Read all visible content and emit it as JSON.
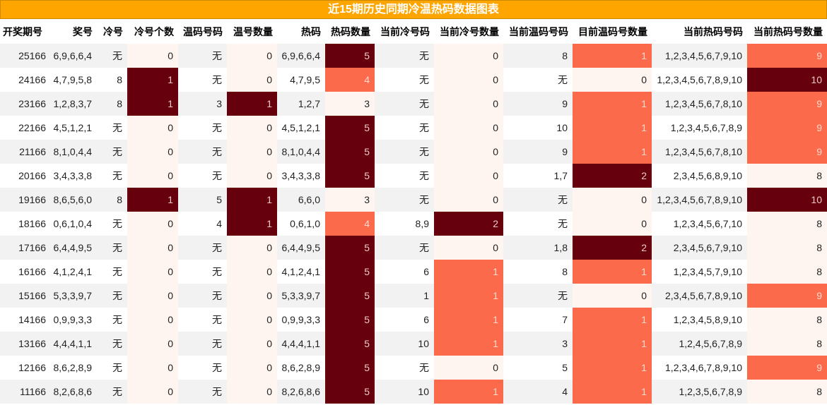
{
  "title": "近15期历史同期冷温热码数据图表",
  "table": {
    "headers": [
      "开奖期号",
      "奖号",
      "冷号",
      "冷号个数",
      "温码号码",
      "温号数量",
      "热码",
      "热码数量",
      "当前冷号码",
      "当前冷号数量",
      "当前温码号码",
      "目前温码号数量",
      "当前热码号码",
      "当前热码号数量"
    ],
    "rows": [
      [
        "25166",
        "6,9,6,6,4",
        "无",
        0,
        "无",
        0,
        "6,9,6,6,4",
        5,
        "无",
        0,
        "8",
        1,
        "1,2,3,4,5,6,7,9,10",
        9
      ],
      [
        "24166",
        "4,7,9,5,8",
        "8",
        1,
        "无",
        0,
        "4,7,9,5",
        4,
        "无",
        0,
        "无",
        0,
        "1,2,3,4,5,6,7,8,9,10",
        10
      ],
      [
        "23166",
        "1,2,8,3,7",
        "8",
        1,
        "3",
        1,
        "1,2,7",
        3,
        "无",
        0,
        "9",
        1,
        "1,2,3,4,5,6,7,8,10",
        9
      ],
      [
        "22166",
        "4,5,1,2,1",
        "无",
        0,
        "无",
        0,
        "4,5,1,2,1",
        5,
        "无",
        0,
        "10",
        1,
        "1,2,3,4,5,6,7,8,9",
        9
      ],
      [
        "21166",
        "8,1,0,4,4",
        "无",
        0,
        "无",
        0,
        "8,1,0,4,4",
        5,
        "无",
        0,
        "9",
        1,
        "1,2,3,4,5,6,7,8,10",
        9
      ],
      [
        "20166",
        "3,4,3,3,8",
        "无",
        0,
        "无",
        0,
        "3,4,3,3,8",
        5,
        "无",
        0,
        "1,7",
        2,
        "2,3,4,5,6,8,9,10",
        8
      ],
      [
        "19166",
        "8,6,5,6,0",
        "8",
        1,
        "5",
        1,
        "6,6,0",
        3,
        "无",
        0,
        "无",
        0,
        "1,2,3,4,5,6,7,8,9,10",
        10
      ],
      [
        "18166",
        "0,6,1,0,4",
        "无",
        0,
        "4",
        1,
        "0,6,1,0",
        4,
        "8,9",
        2,
        "无",
        0,
        "1,2,3,4,5,6,7,10",
        8
      ],
      [
        "17166",
        "6,4,4,9,5",
        "无",
        0,
        "无",
        0,
        "6,4,4,9,5",
        5,
        "无",
        0,
        "1,8",
        2,
        "2,3,4,5,6,7,9,10",
        8
      ],
      [
        "16166",
        "4,1,2,4,1",
        "无",
        0,
        "无",
        0,
        "4,1,2,4,1",
        5,
        "6",
        1,
        "8",
        1,
        "1,2,3,4,5,7,9,10",
        8
      ],
      [
        "15166",
        "5,3,3,9,7",
        "无",
        0,
        "无",
        0,
        "5,3,3,9,7",
        5,
        "1",
        1,
        "无",
        0,
        "2,3,4,5,6,7,8,9,10",
        9
      ],
      [
        "14166",
        "0,9,9,3,3",
        "无",
        0,
        "无",
        0,
        "0,9,9,3,3",
        5,
        "6",
        1,
        "7",
        1,
        "1,2,3,4,5,8,9,10",
        8
      ],
      [
        "13166",
        "4,4,4,1,1",
        "无",
        0,
        "无",
        0,
        "4,4,4,1,1",
        5,
        "10",
        1,
        "3",
        1,
        "1,2,4,5,6,7,8,9",
        8
      ],
      [
        "12166",
        "8,6,2,8,9",
        "无",
        0,
        "无",
        0,
        "8,6,2,8,9",
        5,
        "无",
        0,
        "5",
        1,
        "1,2,3,4,6,7,8,9,10",
        9
      ],
      [
        "11166",
        "8,2,6,8,6",
        "无",
        0,
        "无",
        0,
        "8,2,6,8,6",
        5,
        "10",
        1,
        "4",
        1,
        "1,2,3,5,6,7,8,9",
        8
      ]
    ]
  }
}
